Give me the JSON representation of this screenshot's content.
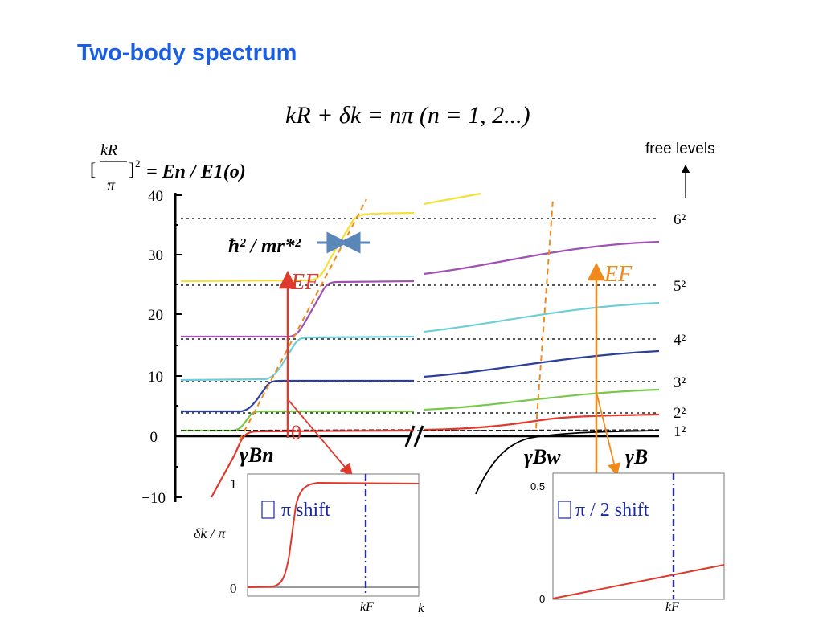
{
  "slide": {
    "title": "Two-body spectrum",
    "formula": "kR + δk = nπ  (n = 1, 2...)",
    "free_levels_label": "free levels",
    "energy_formula": {
      "lhs_numerator": "kR",
      "lhs_denominator": "π",
      "lhs_exponent": "2",
      "rhs": "= En / E1(o)"
    },
    "gap_label": "ħ² / mr*²",
    "fermi_label_left": "EF",
    "fermi_label_right": "EF",
    "zero_marker": "0",
    "x_labels": {
      "left": "γBn",
      "middle": "γBw",
      "right": "γB"
    },
    "level_labels": [
      "6²",
      "5²",
      "4²",
      "3²",
      "2²",
      "1²"
    ],
    "y_ticks": [
      "40",
      "30",
      "20",
      "10",
      "0",
      "−10"
    ],
    "inset_left": {
      "y_tick_top": "1",
      "y_tick_bottom": "0",
      "y_label": "δk / π",
      "annotation": "π shift",
      "x_tick": "kF",
      "x_label": "k"
    },
    "inset_right": {
      "y_tick_top": "0.5",
      "y_tick_bottom": "0",
      "annotation": "π / 2 shift",
      "x_tick": "kF"
    }
  },
  "colors": {
    "title": "#1a5fe0",
    "yellow": "#f2e13b",
    "magenta": "#a052b4",
    "cyan": "#6ccfd8",
    "navy": "#2b3f9c",
    "green": "#78c84a",
    "red": "#e03a2f",
    "orange": "#f08a1c",
    "slate": "#5a86b8",
    "indigo": "#2f2f9c"
  }
}
